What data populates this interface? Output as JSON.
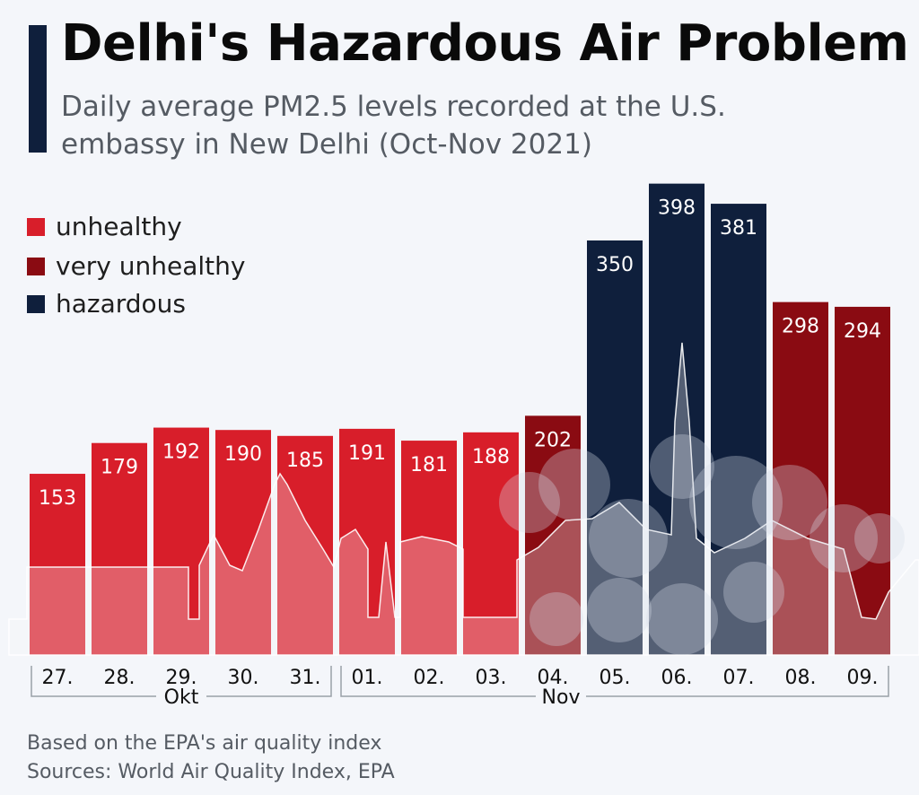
{
  "title": "Delhi's Hazardous Air Problem",
  "subtitle": "Daily average PM2.5 levels recorded at the U.S. embassy in New Delhi (Oct-Nov 2021)",
  "legend": [
    {
      "label": "unhealthy",
      "color": "#d81e2a"
    },
    {
      "label": "very unhealthy",
      "color": "#8a0b12"
    },
    {
      "label": "hazardous",
      "color": "#0f1f3c"
    }
  ],
  "footer": {
    "note": "Based on the EPA's air quality index",
    "sources": "Sources: World Air Quality Index, EPA"
  },
  "chart_data": {
    "type": "bar",
    "categories": [
      "27.",
      "28.",
      "29.",
      "30.",
      "31.",
      "01.",
      "02.",
      "03.",
      "04.",
      "05.",
      "06.",
      "07.",
      "08.",
      "09."
    ],
    "values": [
      153,
      179,
      192,
      190,
      185,
      191,
      181,
      188,
      202,
      350,
      398,
      381,
      298,
      294
    ],
    "category_levels": [
      "unhealthy",
      "unhealthy",
      "unhealthy",
      "unhealthy",
      "unhealthy",
      "unhealthy",
      "unhealthy",
      "unhealthy",
      "very unhealthy",
      "hazardous",
      "hazardous",
      "hazardous",
      "very unhealthy",
      "very unhealthy"
    ],
    "level_colors": {
      "unhealthy": "#d81e2a",
      "very unhealthy": "#8a0b12",
      "hazardous": "#0f1f3c"
    },
    "month_groups": [
      {
        "label": "Okt",
        "from": 0,
        "to": 4
      },
      {
        "label": "Nov",
        "from": 5,
        "to": 13
      }
    ],
    "ylim": [
      0,
      400
    ]
  }
}
